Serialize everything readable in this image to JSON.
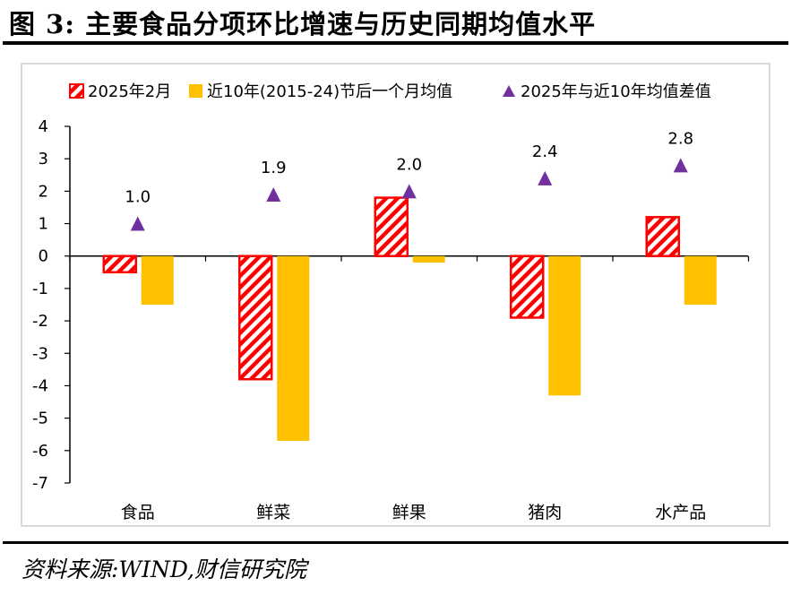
{
  "title": "图 3:  主要食品分项环比增速与历史同期均值水平",
  "source": "资料来源:WIND,财信研究院",
  "colors": {
    "hatch_red": "#ff0000",
    "avg_gold": "#ffc000",
    "marker_purple": "#7030a0",
    "axis": "#000000",
    "frame": "#d9d9d9"
  },
  "chart_data": {
    "type": "bar",
    "categories": [
      "食品",
      "鲜菜",
      "鲜果",
      "猪肉",
      "水产品"
    ],
    "series": [
      {
        "name": "2025年2月",
        "kind": "bar",
        "pattern": "hatched-red",
        "values": [
          -0.5,
          -3.8,
          1.8,
          -1.9,
          1.2
        ]
      },
      {
        "name": "近10年(2015-24)节后一个月均值",
        "kind": "bar",
        "pattern": "solid-gold",
        "values": [
          -1.5,
          -5.7,
          -0.2,
          -4.3,
          -1.5
        ]
      },
      {
        "name": "2025年与近10年均值差值",
        "kind": "marker",
        "marker": "triangle-purple",
        "values": [
          1.0,
          1.9,
          2.0,
          2.4,
          2.8
        ],
        "labels": [
          "1.0",
          "1.9",
          "2.0",
          "2.4",
          "2.8"
        ]
      }
    ],
    "yticks": [
      "4",
      "3",
      "2",
      "1",
      "0",
      "-1",
      "-2",
      "-3",
      "-4",
      "-5",
      "-6",
      "-7"
    ],
    "ylim": [
      -7,
      4
    ],
    "xlabel": "",
    "ylabel": "",
    "legend_position": "top",
    "grid": false
  }
}
